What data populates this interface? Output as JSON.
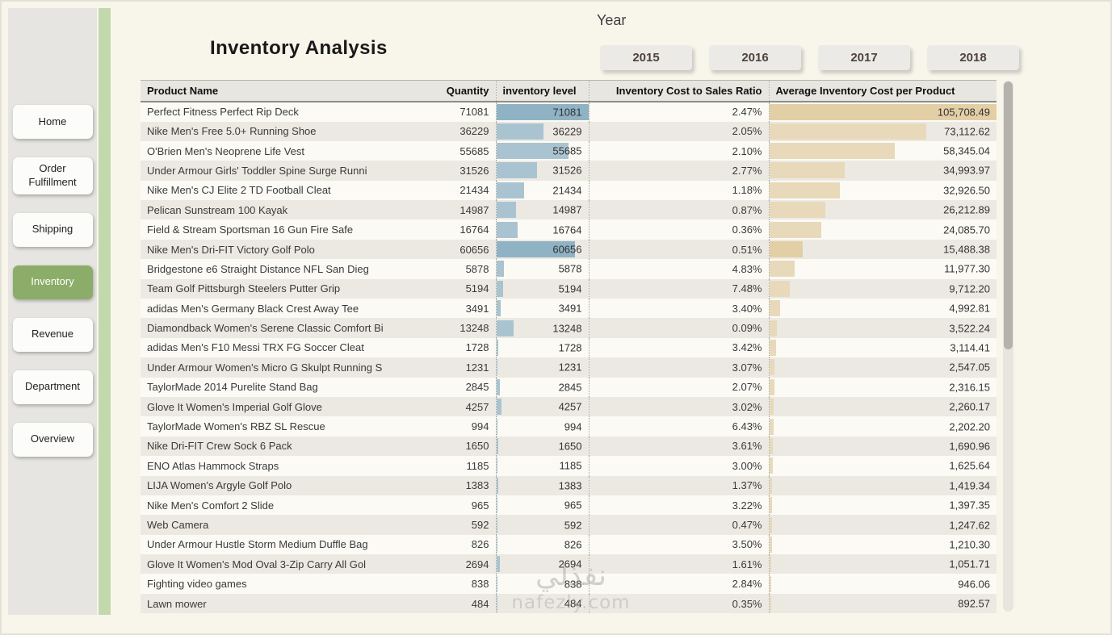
{
  "colors": {
    "accent_green": "#8cad69",
    "strip_green": "#c4d8ae",
    "inventory_bar": "#a9c4d0",
    "inventory_bar_highlight": "#8fb2c4",
    "cost_bar": "#e8d9ba",
    "cost_bar_highlight": "#e3cfa6"
  },
  "sidebar": {
    "items": [
      {
        "label": "Home",
        "active": false
      },
      {
        "label": "Order Fulfillment",
        "active": false
      },
      {
        "label": "Shipping",
        "active": false
      },
      {
        "label": "Inventory",
        "active": true
      },
      {
        "label": "Revenue",
        "active": false
      },
      {
        "label": "Department",
        "active": false
      },
      {
        "label": "Overview",
        "active": false
      }
    ]
  },
  "header": {
    "title": "Inventory Analysis",
    "year_filter": {
      "label": "Year",
      "options": [
        "2015",
        "2016",
        "2017",
        "2018"
      ]
    }
  },
  "table": {
    "columns": [
      "Product Name",
      "Quantity",
      "inventory level",
      "Inventory Cost to Sales Ratio",
      "Average Inventory Cost per Product"
    ],
    "rows": [
      {
        "name": "Perfect Fitness Perfect Rip Deck",
        "quantity": "71081",
        "ratio": "2.47%",
        "avg_cost": "105,708.49",
        "highlight": true
      },
      {
        "name": "Nike Men's Free 5.0+ Running Shoe",
        "quantity": "36229",
        "ratio": "2.05%",
        "avg_cost": "73,112.62",
        "highlight": false
      },
      {
        "name": "O'Brien Men's Neoprene Life Vest",
        "quantity": "55685",
        "ratio": "2.10%",
        "avg_cost": "58,345.04",
        "highlight": false
      },
      {
        "name": "Under Armour Girls' Toddler Spine Surge Runni",
        "quantity": "31526",
        "ratio": "2.77%",
        "avg_cost": "34,993.97",
        "highlight": false
      },
      {
        "name": "Nike Men's CJ Elite 2 TD Football Cleat",
        "quantity": "21434",
        "ratio": "1.18%",
        "avg_cost": "32,926.50",
        "highlight": false
      },
      {
        "name": "Pelican Sunstream 100 Kayak",
        "quantity": "14987",
        "ratio": "0.87%",
        "avg_cost": "26,212.89",
        "highlight": false
      },
      {
        "name": "Field & Stream Sportsman 16 Gun Fire Safe",
        "quantity": "16764",
        "ratio": "0.36%",
        "avg_cost": "24,085.70",
        "highlight": false
      },
      {
        "name": "Nike Men's Dri-FIT Victory Golf Polo",
        "quantity": "60656",
        "ratio": "0.51%",
        "avg_cost": "15,488.38",
        "highlight": true
      },
      {
        "name": "Bridgestone e6 Straight Distance NFL San Dieg",
        "quantity": "5878",
        "ratio": "4.83%",
        "avg_cost": "11,977.30",
        "highlight": false
      },
      {
        "name": "Team Golf Pittsburgh Steelers Putter Grip",
        "quantity": "5194",
        "ratio": "7.48%",
        "avg_cost": "9,712.20",
        "highlight": false
      },
      {
        "name": "adidas Men's Germany Black Crest Away Tee",
        "quantity": "3491",
        "ratio": "3.40%",
        "avg_cost": "4,992.81",
        "highlight": false
      },
      {
        "name": "Diamondback Women's Serene Classic Comfort Bi",
        "quantity": "13248",
        "ratio": "0.09%",
        "avg_cost": "3,522.24",
        "highlight": false
      },
      {
        "name": "adidas Men's F10 Messi TRX FG Soccer Cleat",
        "quantity": "1728",
        "ratio": "3.42%",
        "avg_cost": "3,114.41",
        "highlight": false
      },
      {
        "name": "Under Armour Women's Micro G Skulpt Running S",
        "quantity": "1231",
        "ratio": "3.07%",
        "avg_cost": "2,547.05",
        "highlight": false
      },
      {
        "name": "TaylorMade 2014 Purelite Stand Bag",
        "quantity": "2845",
        "ratio": "2.07%",
        "avg_cost": "2,316.15",
        "highlight": false
      },
      {
        "name": "Glove It Women's Imperial Golf Glove",
        "quantity": "4257",
        "ratio": "3.02%",
        "avg_cost": "2,260.17",
        "highlight": false
      },
      {
        "name": "TaylorMade Women's RBZ SL Rescue",
        "quantity": "994",
        "ratio": "6.43%",
        "avg_cost": "2,202.20",
        "highlight": false
      },
      {
        "name": "Nike Dri-FIT Crew Sock 6 Pack",
        "quantity": "1650",
        "ratio": "3.61%",
        "avg_cost": "1,690.96",
        "highlight": false
      },
      {
        "name": "ENO Atlas Hammock Straps",
        "quantity": "1185",
        "ratio": "3.00%",
        "avg_cost": "1,625.64",
        "highlight": false
      },
      {
        "name": "LIJA Women's Argyle Golf Polo",
        "quantity": "1383",
        "ratio": "1.37%",
        "avg_cost": "1,419.34",
        "highlight": false
      },
      {
        "name": "Nike Men's Comfort 2 Slide",
        "quantity": "965",
        "ratio": "3.22%",
        "avg_cost": "1,397.35",
        "highlight": false
      },
      {
        "name": "Web Camera",
        "quantity": "592",
        "ratio": "0.47%",
        "avg_cost": "1,247.62",
        "highlight": false
      },
      {
        "name": "Under Armour Hustle Storm Medium Duffle Bag",
        "quantity": "826",
        "ratio": "3.50%",
        "avg_cost": "1,210.30",
        "highlight": false
      },
      {
        "name": "Glove It Women's Mod Oval 3-Zip Carry All Gol",
        "quantity": "2694",
        "ratio": "1.61%",
        "avg_cost": "1,051.71",
        "highlight": false
      },
      {
        "name": "Fighting video games",
        "quantity": "838",
        "ratio": "2.84%",
        "avg_cost": "946.06",
        "highlight": false
      },
      {
        "name": "Lawn mower",
        "quantity": "484",
        "ratio": "0.35%",
        "avg_cost": "892.57",
        "highlight": false
      }
    ]
  },
  "watermark": {
    "arabic": "نفذلي",
    "latin": "nafezly.com"
  }
}
